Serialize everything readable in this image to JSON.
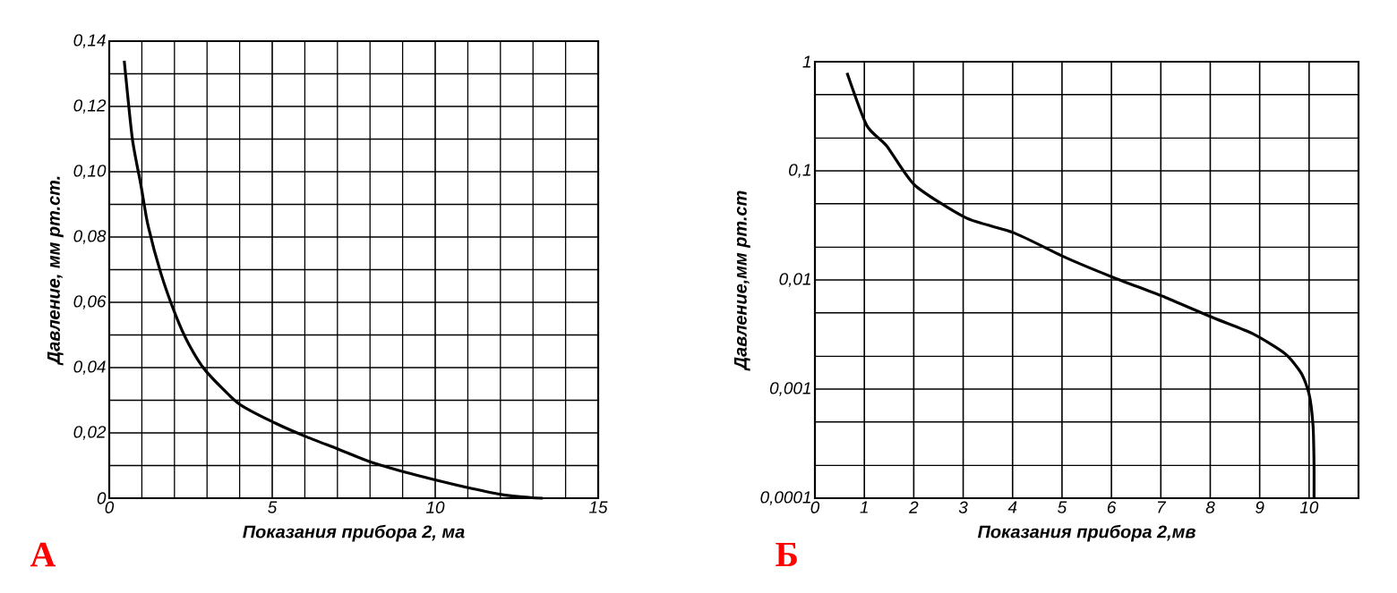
{
  "chart_data": [
    {
      "type": "line",
      "xlabel": "Показания прибора 2, ма",
      "ylabel": "Давление, мм рт.ст.",
      "annotations": [
        "А"
      ],
      "xlim": [
        0,
        15
      ],
      "ylim": [
        0,
        0.14
      ],
      "xticks": [
        0,
        5,
        10,
        15
      ],
      "yticks": [
        0,
        {
          "value": 0.02,
          "label": "0,02"
        },
        {
          "value": 0.04,
          "label": "0,04"
        },
        {
          "value": 0.06,
          "label": "0,06"
        },
        {
          "value": 0.08,
          "label": "0,08"
        },
        {
          "value": 0.1,
          "label": "0,10"
        },
        {
          "value": 0.12,
          "label": "0,12"
        },
        {
          "value": 0.14,
          "label": "0,14"
        }
      ],
      "grid": true,
      "marker": "none",
      "line_style": "solid",
      "series": [
        {
          "color": "#000000",
          "x": [
            0.46,
            0.71,
            0.97,
            1.18,
            1.58,
            2.04,
            2.45,
            2.96,
            3.97,
            5.09,
            6.0,
            7.03,
            8.04,
            9.06,
            10.08,
            11.1,
            12.1,
            12.9,
            13.3
          ],
          "values": [
            0.134,
            0.11,
            0.096,
            0.084,
            0.069,
            0.056,
            0.047,
            0.039,
            0.029,
            0.023,
            0.019,
            0.015,
            0.011,
            0.008,
            0.0054,
            0.003,
            0.001,
            0.0002,
            0
          ]
        }
      ]
    },
    {
      "type": "line",
      "xlabel": "Показания прибора 2,мв",
      "ylabel": "Давление,мм рт.ст",
      "annotations": [
        "Б"
      ],
      "xlim": [
        0,
        11
      ],
      "ylim": [
        0.0001,
        1
      ],
      "xticks": [
        0,
        1,
        2,
        3,
        4,
        5,
        6,
        7,
        8,
        9,
        10
      ],
      "yticks": [
        {
          "value": 0.0001,
          "label": "0,0001"
        },
        {
          "value": 0.001,
          "label": "0,001"
        },
        {
          "value": 0.01,
          "label": "0,01"
        },
        {
          "value": 0.1,
          "label": "0,1"
        },
        1
      ],
      "log": "y",
      "grid": true,
      "marker": "none",
      "line_style": "solid",
      "series": [
        {
          "color": "#000000",
          "x": [
            0.65,
            1.05,
            1.45,
            2.02,
            3.06,
            4.03,
            5.08,
            6.05,
            7.1,
            8.06,
            8.87,
            9.52,
            9.84,
            10.0,
            10.08,
            10.1,
            10.1
          ],
          "values": [
            0.79,
            0.26,
            0.17,
            0.074,
            0.037,
            0.027,
            0.016,
            0.0105,
            0.0069,
            0.0045,
            0.0032,
            0.0021,
            0.0014,
            0.0009,
            0.00046,
            0.0002,
            0.0001
          ]
        }
      ]
    }
  ]
}
